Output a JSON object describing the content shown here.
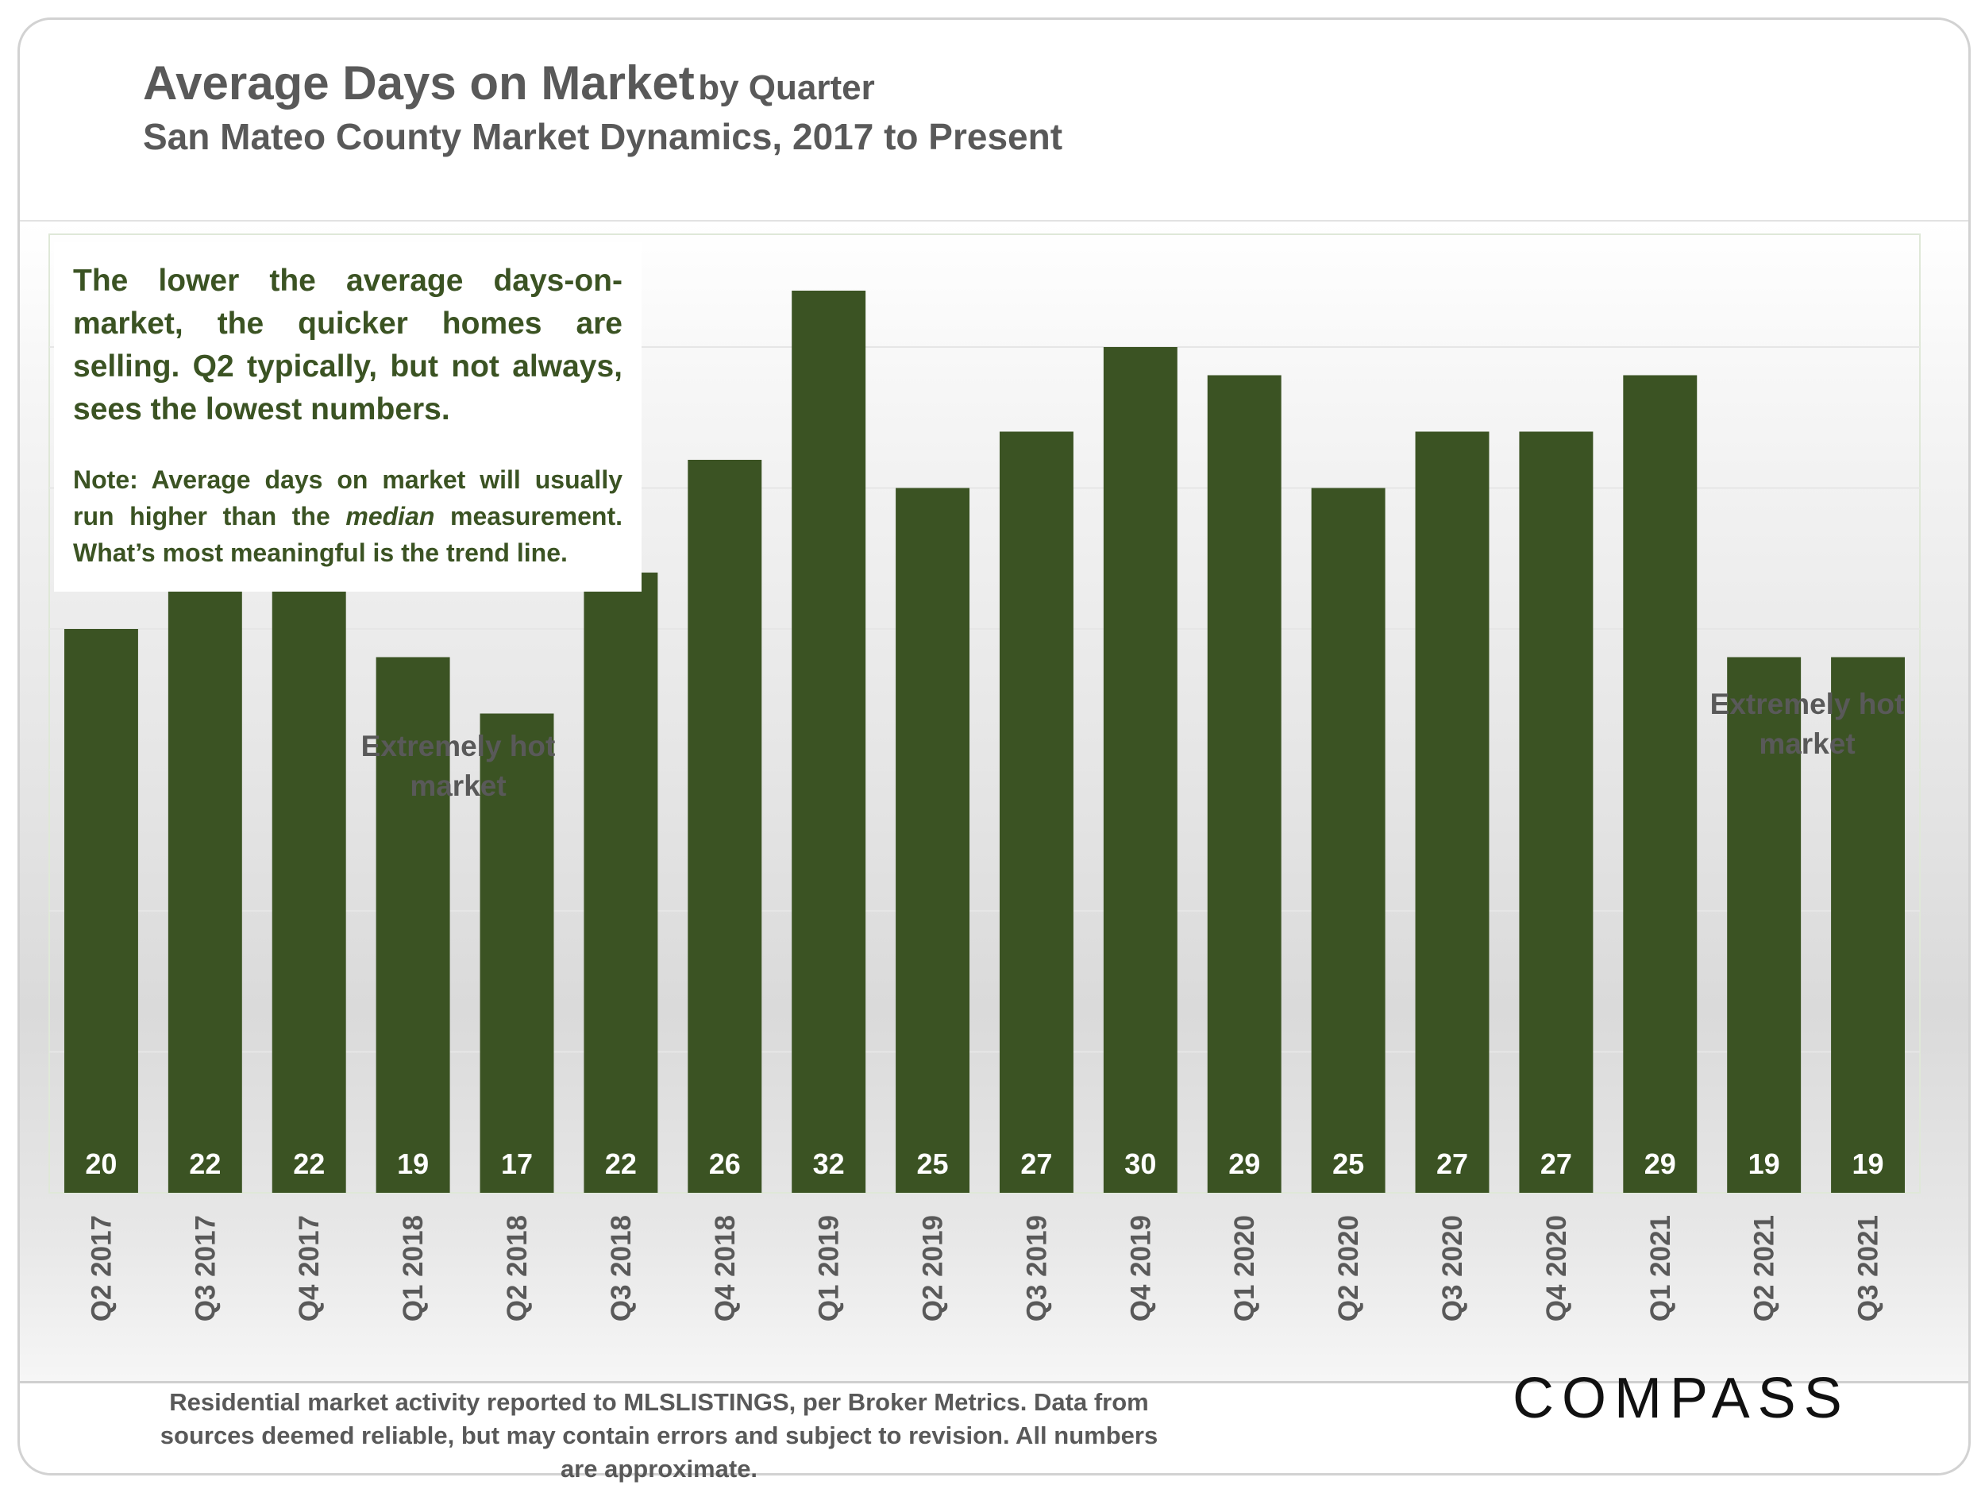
{
  "title": {
    "main": "Average Days on Market",
    "qualifier": "by Quarter",
    "subtitle": "San Mateo County Market Dynamics, 2017 to Present"
  },
  "note": {
    "main": "The lower the average days-on-market, the quicker homes are selling. Q2 typically, but not always, sees the lowest numbers.",
    "sub_part1": "Note: Average days on market will usually run higher than the",
    "sub_em": "median",
    "sub_part2": "measurement. What’s most meaningful is the trend line."
  },
  "annotations": {
    "hot_market_1": "Extremely hot market",
    "hot_market_2": "Extremely hot market"
  },
  "footer": {
    "source": "Residential market activity reported to MLSLISTINGS, per Broker Metrics. Data from sources deemed reliable, but may contain errors and subject to revision. All numbers are approximate.",
    "logo": "COMPASS"
  },
  "colors": {
    "bar": "#3b5323",
    "label": "#ffffff",
    "axis_text": "#595959",
    "grid": "#e6e6e6"
  },
  "chart_data": {
    "type": "bar",
    "title": "Average Days on Market by Quarter",
    "xlabel": "",
    "ylabel": "",
    "ylim": [
      0,
      34
    ],
    "grid": true,
    "categories": [
      "Q2 2017",
      "Q3 2017",
      "Q4 2017",
      "Q1 2018",
      "Q2 2018",
      "Q3 2018",
      "Q4 2018",
      "Q1 2019",
      "Q2 2019",
      "Q3 2019",
      "Q4 2019",
      "Q1 2020",
      "Q2 2020",
      "Q3 2020",
      "Q4 2020",
      "Q1 2021",
      "Q2 2021",
      "Q3 2021"
    ],
    "values": [
      20,
      22,
      22,
      19,
      17,
      22,
      26,
      32,
      25,
      27,
      30,
      29,
      25,
      27,
      27,
      29,
      19,
      19
    ]
  }
}
